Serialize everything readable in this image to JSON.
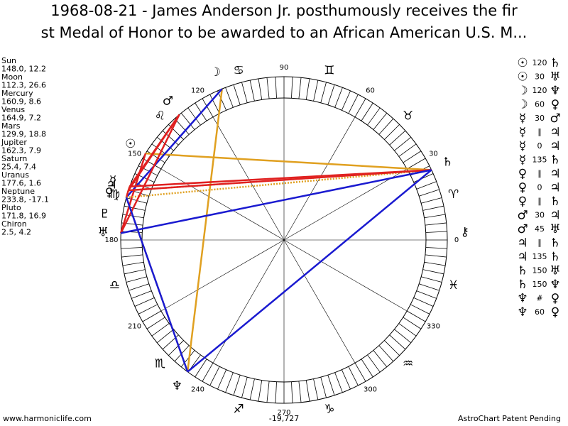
{
  "header": {
    "title_line1": "1968-08-21 - James Anderson Jr. posthumously receives the fir",
    "title_line2": "st Medal of Honor to be awarded to an African American U.S. M..."
  },
  "planets": [
    {
      "name": "Sun",
      "glyph": "☉",
      "coords": "148.0, 12.2"
    },
    {
      "name": "Moon",
      "glyph": "☽",
      "coords": "112.3, 26.6"
    },
    {
      "name": "Mercury",
      "glyph": "☿",
      "coords": "160.9, 8.6"
    },
    {
      "name": "Venus",
      "glyph": "♀",
      "coords": "164.9, 7.2"
    },
    {
      "name": "Mars",
      "glyph": "♂",
      "coords": "129.9, 18.8"
    },
    {
      "name": "Jupiter",
      "glyph": "♃",
      "coords": "162.3, 7.9"
    },
    {
      "name": "Saturn",
      "glyph": "♄",
      "coords": "25.4, 7.4"
    },
    {
      "name": "Uranus",
      "glyph": "♅",
      "coords": "177.6, 1.6"
    },
    {
      "name": "Neptune",
      "glyph": "♆",
      "coords": "233.8, -17.1"
    },
    {
      "name": "Pluto",
      "glyph": "♇",
      "coords": "171.8, 16.9"
    },
    {
      "name": "Chiron",
      "glyph": "⚷",
      "coords": "2.5, 4.2"
    }
  ],
  "wheel": {
    "degree_labels": [
      0,
      30,
      60,
      90,
      120,
      150,
      180,
      210,
      240,
      270,
      300,
      330
    ],
    "signs": [
      "♈",
      "♉",
      "♊",
      "♋",
      "♌",
      "♍",
      "♎",
      "♏",
      "♐",
      "♑",
      "♒",
      "♓"
    ]
  },
  "aspects": [
    {
      "a": "☉",
      "aspect": "120",
      "b": "♄",
      "color": "#e0a020",
      "dotted": false
    },
    {
      "a": "☉",
      "aspect": "30",
      "b": "♅",
      "color": "#e02020",
      "dotted": false
    },
    {
      "a": "☽",
      "aspect": "120",
      "b": "♆",
      "color": "#e0a020",
      "dotted": false
    },
    {
      "a": "☽",
      "aspect": "60",
      "b": "♀",
      "color": "#1a1ad0",
      "dotted": false
    },
    {
      "a": "☿",
      "aspect": "30",
      "b": "♂",
      "color": "#e02020",
      "dotted": false
    },
    {
      "a": "☿",
      "aspect": "∥",
      "b": "♃",
      "color": "#e0a020",
      "dotted": true
    },
    {
      "a": "☿",
      "aspect": "0",
      "b": "♃",
      "color": "#e02020",
      "dotted": false
    },
    {
      "a": "☿",
      "aspect": "135",
      "b": "♄",
      "color": "#e02020",
      "dotted": false
    },
    {
      "a": "♀",
      "aspect": "∥",
      "b": "♃",
      "color": "#e0a020",
      "dotted": true
    },
    {
      "a": "♀",
      "aspect": "0",
      "b": "♃",
      "color": "#e02020",
      "dotted": false
    },
    {
      "a": "♀",
      "aspect": "∥",
      "b": "♄",
      "color": "#e0a020",
      "dotted": true
    },
    {
      "a": "♂",
      "aspect": "30",
      "b": "♃",
      "color": "#e02020",
      "dotted": false
    },
    {
      "a": "♂",
      "aspect": "45",
      "b": "♅",
      "color": "#e02020",
      "dotted": false
    },
    {
      "a": "♃",
      "aspect": "∥",
      "b": "♄",
      "color": "#e0a020",
      "dotted": true
    },
    {
      "a": "♃",
      "aspect": "135",
      "b": "♄",
      "color": "#e02020",
      "dotted": false
    },
    {
      "a": "♄",
      "aspect": "150",
      "b": "♅",
      "color": "#1a1ad0",
      "dotted": false
    },
    {
      "a": "♄",
      "aspect": "150",
      "b": "♆",
      "color": "#1a1ad0",
      "dotted": false
    },
    {
      "a": "♆",
      "aspect": "#",
      "b": "♀",
      "color": "#e0a020",
      "dotted": true
    },
    {
      "a": "♆",
      "aspect": "60",
      "b": "♀",
      "color": "#1a1ad0",
      "dotted": false
    }
  ],
  "footer": {
    "site": "www.harmoniclife.com",
    "number": "-19,727",
    "note": "AstroChart Patent Pending"
  }
}
